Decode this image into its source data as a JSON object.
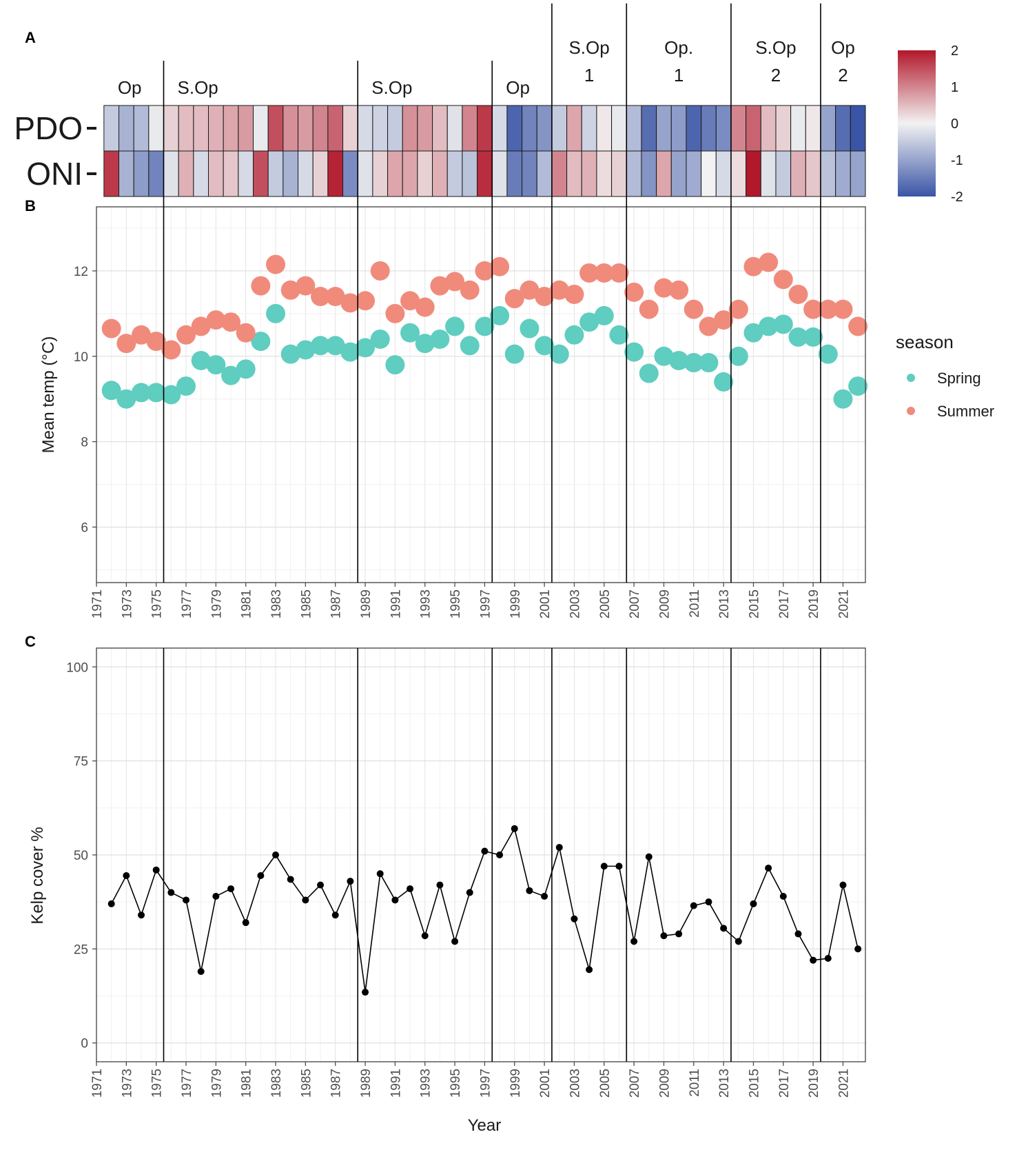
{
  "panels": {
    "a": "A",
    "b": "B",
    "c": "C"
  },
  "x_tick_labels": [
    "1971",
    "1973",
    "1975",
    "1977",
    "1979",
    "1981",
    "1983",
    "1985",
    "1987",
    "1989",
    "1991",
    "1993",
    "1995",
    "1997",
    "1999",
    "2001",
    "2003",
    "2005",
    "2007",
    "2009",
    "2011",
    "2013",
    "2015",
    "2017",
    "2019",
    "2021"
  ],
  "phases": [
    {
      "line1": "Op",
      "line2": "",
      "start_year": 1971.5,
      "end_year": 1975.5
    },
    {
      "line1": "S.Op",
      "line2": "",
      "start_year": 1975.5,
      "end_year": 1988.5
    },
    {
      "line1": "S.Op",
      "line2": "",
      "start_year": 1988.5,
      "end_year": 1997.5
    },
    {
      "line1": "Op",
      "line2": "",
      "start_year": 1997.5,
      "end_year": 2001.5
    },
    {
      "line1": "S.Op",
      "line2": "1",
      "start_year": 2001.5,
      "end_year": 2006.5
    },
    {
      "line1": "Op.",
      "line2": "1",
      "start_year": 2006.5,
      "end_year": 2013.5
    },
    {
      "line1": "S.Op",
      "line2": "2",
      "start_year": 2013.5,
      "end_year": 2019.5
    },
    {
      "line1": "Op",
      "line2": "2",
      "start_year": 2019.5,
      "end_year": 2022.5
    }
  ],
  "chart_data": [
    {
      "panel": "A",
      "type": "heatmap",
      "rows": [
        "PDO",
        "ONI"
      ],
      "colorbar": {
        "ticks": [
          "2",
          "1",
          "0",
          "-1",
          "-2"
        ],
        "range": [
          -2,
          2
        ],
        "low_color": "#3a55a6",
        "mid_color": "#f2f2f2",
        "high_color": "#b2182b"
      },
      "years": [
        1972,
        1973,
        1974,
        1975,
        1976,
        1977,
        1978,
        1979,
        1980,
        1981,
        1982,
        1983,
        1984,
        1985,
        1986,
        1987,
        1988,
        1989,
        1990,
        1991,
        1992,
        1993,
        1994,
        1995,
        1996,
        1997,
        1998,
        1999,
        2000,
        2001,
        2002,
        2003,
        2004,
        2005,
        2006,
        2007,
        2008,
        2009,
        2010,
        2011,
        2012,
        2013,
        2014,
        2015,
        2016,
        2017,
        2018,
        2019,
        2020,
        2021,
        2022
      ],
      "values": {
        "PDO": [
          -0.5,
          -0.8,
          -0.7,
          -0.1,
          0.3,
          0.5,
          0.5,
          0.6,
          0.7,
          0.8,
          -0.1,
          1.5,
          0.9,
          0.8,
          1.0,
          1.3,
          0.3,
          -0.3,
          -0.4,
          -0.5,
          0.9,
          0.8,
          0.5,
          -0.2,
          1.0,
          1.7,
          -0.3,
          -1.8,
          -1.4,
          -1.2,
          -0.5,
          0.7,
          -0.4,
          0.1,
          -0.1,
          -0.7,
          -1.7,
          -1.0,
          -1.1,
          -1.8,
          -1.5,
          -1.3,
          1.0,
          1.3,
          0.5,
          0.3,
          -0.1,
          0.1,
          -1.0,
          -1.7,
          -2.0
        ],
        "ONI": [
          1.7,
          -0.8,
          -1.1,
          -1.4,
          -0.2,
          0.6,
          -0.3,
          0.5,
          0.4,
          -0.3,
          1.5,
          -0.5,
          -0.8,
          -0.3,
          0.3,
          1.9,
          -1.3,
          -0.2,
          0.3,
          0.7,
          0.7,
          0.3,
          0.6,
          -0.5,
          -0.6,
          1.8,
          -0.2,
          -1.5,
          -1.4,
          -0.7,
          1.0,
          0.5,
          0.6,
          0.2,
          0.3,
          -0.7,
          -1.2,
          0.7,
          -1.0,
          -0.9,
          0.0,
          -0.3,
          0.2,
          2.0,
          -0.2,
          -0.5,
          0.6,
          0.4,
          -0.6,
          -0.9,
          -1.0
        ]
      }
    },
    {
      "panel": "B",
      "type": "scatter",
      "ylabel": "Mean temp (°C)",
      "xlim": [
        1971,
        2022.5
      ],
      "ylim": [
        4.7,
        13.5
      ],
      "yticks": [
        6,
        8,
        10,
        12
      ],
      "legend": {
        "title": "season",
        "position": "right"
      },
      "x": [
        1972,
        1973,
        1974,
        1975,
        1976,
        1977,
        1978,
        1979,
        1980,
        1981,
        1982,
        1983,
        1984,
        1985,
        1986,
        1987,
        1988,
        1989,
        1990,
        1991,
        1992,
        1993,
        1994,
        1995,
        1996,
        1997,
        1998,
        1999,
        2000,
        2001,
        2002,
        2003,
        2004,
        2005,
        2006,
        2007,
        2008,
        2009,
        2010,
        2011,
        2012,
        2013,
        2014,
        2015,
        2016,
        2017,
        2018,
        2019,
        2020,
        2021,
        2022
      ],
      "series": [
        {
          "name": "Spring",
          "color": "#5fcdc0",
          "values": [
            9.2,
            9.0,
            9.15,
            9.15,
            9.1,
            9.3,
            9.9,
            9.8,
            9.55,
            9.7,
            10.35,
            11.0,
            10.05,
            10.15,
            10.25,
            10.25,
            10.1,
            10.2,
            10.4,
            9.8,
            10.55,
            10.3,
            10.4,
            10.7,
            10.25,
            10.7,
            10.95,
            10.05,
            10.65,
            10.25,
            10.05,
            10.5,
            10.8,
            10.95,
            10.5,
            10.1,
            9.6,
            10.0,
            9.9,
            9.85,
            9.85,
            9.4,
            10.0,
            10.55,
            10.7,
            10.75,
            10.45,
            10.45,
            10.05,
            9.0,
            9.3
          ]
        },
        {
          "name": "Summer",
          "color": "#f08b7c",
          "values": [
            10.65,
            10.3,
            10.5,
            10.35,
            10.15,
            10.5,
            10.7,
            10.85,
            10.8,
            10.55,
            11.65,
            12.15,
            11.55,
            11.65,
            11.4,
            11.4,
            11.25,
            11.3,
            12.0,
            11.0,
            11.3,
            11.15,
            11.65,
            11.75,
            11.55,
            12.0,
            12.1,
            11.35,
            11.55,
            11.4,
            11.55,
            11.45,
            11.95,
            11.95,
            11.95,
            11.5,
            11.1,
            11.6,
            11.55,
            11.1,
            10.7,
            10.85,
            11.1,
            12.1,
            12.2,
            11.8,
            11.45,
            11.1,
            11.1,
            11.1,
            10.7
          ]
        }
      ]
    },
    {
      "panel": "C",
      "type": "line",
      "xlabel": "Year",
      "ylabel": "Kelp cover %",
      "xlim": [
        1971,
        2022.5
      ],
      "ylim": [
        -5,
        105
      ],
      "yticks": [
        0,
        25,
        50,
        75,
        100
      ],
      "x": [
        1972,
        1973,
        1974,
        1975,
        1976,
        1977,
        1978,
        1979,
        1980,
        1981,
        1982,
        1983,
        1984,
        1985,
        1986,
        1987,
        1988,
        1989,
        1990,
        1991,
        1992,
        1993,
        1994,
        1995,
        1996,
        1997,
        1998,
        1999,
        2000,
        2001,
        2002,
        2003,
        2004,
        2005,
        2006,
        2007,
        2008,
        2009,
        2010,
        2011,
        2012,
        2013,
        2014,
        2015,
        2016,
        2017,
        2018,
        2019,
        2020,
        2021,
        2022
      ],
      "values": [
        37,
        44.5,
        34,
        46,
        40,
        38,
        19,
        39,
        41,
        32,
        44.5,
        50,
        43.5,
        38,
        42,
        34,
        43,
        13.5,
        45,
        38,
        41,
        28.5,
        42,
        27,
        40,
        51,
        50,
        57,
        40.5,
        39,
        52,
        33,
        19.5,
        47,
        47,
        27,
        49.5,
        28.5,
        29,
        36.5,
        37.5,
        30.5,
        27,
        37,
        46.5,
        39,
        29,
        22,
        22.5,
        42,
        25
      ]
    }
  ]
}
